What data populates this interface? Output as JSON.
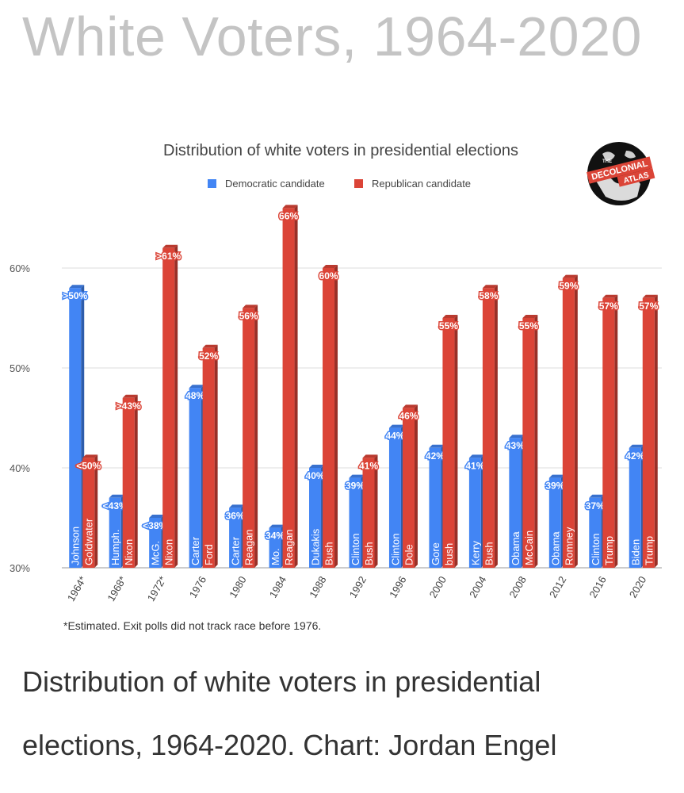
{
  "page_title": "White Voters, 1964-2020",
  "caption": "Distribution of white voters in presidential elections, 1964-2020. Chart: Jordan Engel",
  "logo": {
    "top": "THE",
    "line1": "DECOLONIAL",
    "line2": "ATLAS"
  },
  "colors": {
    "democratic": "#4285f4",
    "republican": "#db4437",
    "label_text": "#ffffff",
    "title_gray": "#c4c4c4"
  },
  "chart_data": {
    "type": "bar",
    "title": "Distribution of white voters in presidential elections",
    "xlabel": "",
    "ylabel": "",
    "ylim": [
      30,
      66
    ],
    "yticks": [
      30,
      40,
      50,
      60
    ],
    "ytick_labels": [
      "30%",
      "40%",
      "50%",
      "60%"
    ],
    "legend": [
      "Democratic candidate",
      "Republican candidate"
    ],
    "legend_position": "top",
    "footnote": "*Estimated. Exit polls did not track race before 1976.",
    "categories": [
      "1964*",
      "1968*",
      "1972*",
      "1976",
      "1980",
      "1984",
      "1988",
      "1992",
      "1996",
      "2000",
      "2004",
      "2008",
      "2012",
      "2016",
      "2020"
    ],
    "series": [
      {
        "name": "Democratic candidate",
        "values": [
          58,
          37,
          35,
          48,
          36,
          34,
          40,
          39,
          44,
          42,
          41,
          43,
          39,
          37,
          42
        ],
        "labels": [
          ">50%",
          "<43%",
          "<38%",
          "48%",
          "36%",
          "34%",
          "40%",
          "39%",
          "44%",
          "42%",
          "41%",
          "43%",
          "39%",
          "37%",
          "42%"
        ],
        "candidates": [
          "Johnson",
          "Humph.",
          "McG.",
          "Carter",
          "Carter",
          "Mo.",
          "Dukakis",
          "Clinton",
          "Clinton",
          "Gore",
          "Kerry",
          "Obama",
          "Obama",
          "Clinton",
          "Biden"
        ]
      },
      {
        "name": "Republican candidate",
        "values": [
          41,
          47,
          62,
          52,
          56,
          66,
          60,
          41,
          46,
          55,
          58,
          55,
          59,
          57,
          57
        ],
        "labels": [
          "<50%",
          ">43%",
          ">61%",
          "52%",
          "56%",
          "66%",
          "60%",
          "41%",
          "46%",
          "55%",
          "58%",
          "55%",
          "59%",
          "57%",
          "57%"
        ],
        "candidates": [
          "Goldwater",
          "Nixon",
          "Nixon",
          "Ford",
          "Reagan",
          "Reagan",
          "Bush",
          "Bush",
          "Dole",
          "bush",
          "Bush",
          "McCain",
          "Romney",
          "Trump",
          "Trump"
        ]
      }
    ]
  }
}
